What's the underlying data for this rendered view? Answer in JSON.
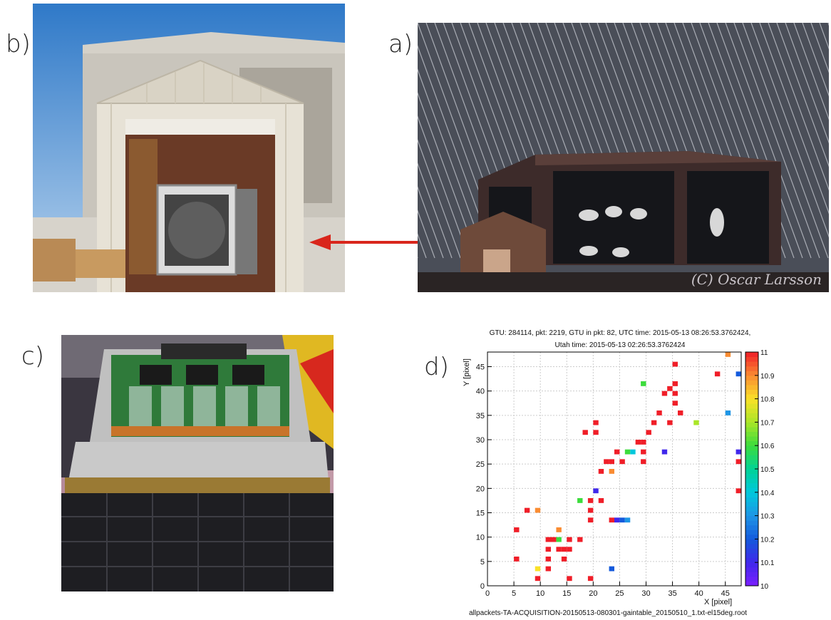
{
  "figure": {
    "label_a": "a)",
    "label_b": "b)",
    "label_c": "c)",
    "label_d": "d)",
    "credit": "(C) Oscar Larsson"
  },
  "heatmap": {
    "title_line1": "GTU: 284114, pkt: 2219, GTU in pkt: 82, UTC time: 2015-05-13 08:26:53.3762424,",
    "title_line2": "Utah time: 2015-05-13 02:26:53.3762424",
    "x_axis_title": "X [pixel]",
    "y_axis_title": "Y [pixel]",
    "x_ticks": [
      "0",
      "5",
      "10",
      "15",
      "20",
      "25",
      "30",
      "35",
      "40",
      "45"
    ],
    "y_ticks": [
      "0",
      "5",
      "10",
      "15",
      "20",
      "25",
      "30",
      "35",
      "40",
      "45"
    ],
    "colorbar_ticks": [
      "11",
      "10.9",
      "10.8",
      "10.7",
      "10.6",
      "10.5",
      "10.4",
      "10.3",
      "10.2",
      "10.1",
      "10"
    ],
    "file_name": "allpackets-TA-ACQUISITION-20150513-080301-gaintable_20150510_1.txt-el15deg.root"
  },
  "chart_data": {
    "type": "heatmap",
    "xlabel": "X [pixel]",
    "ylabel": "Y [pixel]",
    "xlim": [
      0,
      48
    ],
    "ylim": [
      0,
      48
    ],
    "zlim": [
      10,
      11
    ],
    "grid": true,
    "colorbar": "right",
    "cells": [
      [
        45,
        47,
        10.9
      ],
      [
        35,
        45,
        11
      ],
      [
        43,
        43,
        11
      ],
      [
        47,
        43,
        10.2
      ],
      [
        29,
        41,
        10.6
      ],
      [
        33,
        39,
        11
      ],
      [
        34,
        40,
        11
      ],
      [
        35,
        41,
        11
      ],
      [
        35,
        39,
        11
      ],
      [
        35,
        37,
        11
      ],
      [
        36,
        35,
        11
      ],
      [
        32,
        35,
        11
      ],
      [
        45,
        35,
        10.3
      ],
      [
        20,
        33,
        11
      ],
      [
        31,
        33,
        11
      ],
      [
        34,
        33,
        11
      ],
      [
        39,
        33,
        10.7
      ],
      [
        18,
        31,
        11
      ],
      [
        20,
        31,
        11
      ],
      [
        30,
        31,
        11
      ],
      [
        28,
        29,
        11
      ],
      [
        29,
        29,
        11
      ],
      [
        24,
        27,
        11
      ],
      [
        26,
        27,
        10.6
      ],
      [
        27,
        27,
        10.4
      ],
      [
        29,
        27,
        11
      ],
      [
        33,
        27,
        10.1
      ],
      [
        47,
        27,
        10.1
      ],
      [
        22,
        25,
        11
      ],
      [
        23,
        25,
        11
      ],
      [
        25,
        25,
        11
      ],
      [
        29,
        25,
        11
      ],
      [
        47,
        25,
        11
      ],
      [
        21,
        23,
        11
      ],
      [
        23,
        23,
        10.9
      ],
      [
        20,
        19,
        10.1
      ],
      [
        47,
        19,
        11
      ],
      [
        17,
        17,
        10.6
      ],
      [
        19,
        17,
        11
      ],
      [
        21,
        17,
        11
      ],
      [
        19,
        15,
        11
      ],
      [
        7,
        15,
        11
      ],
      [
        9,
        15,
        10.9
      ],
      [
        19,
        13,
        11
      ],
      [
        23,
        13,
        11
      ],
      [
        24,
        13,
        10.1
      ],
      [
        25,
        13,
        10.2
      ],
      [
        26,
        13,
        10.3
      ],
      [
        5,
        11,
        11
      ],
      [
        13,
        11,
        10.9
      ],
      [
        11,
        9,
        11
      ],
      [
        13,
        9,
        10.6
      ],
      [
        12,
        9,
        11
      ],
      [
        15,
        9,
        11
      ],
      [
        17,
        9,
        11
      ],
      [
        13,
        7,
        11
      ],
      [
        14,
        7,
        11
      ],
      [
        15,
        7,
        11
      ],
      [
        11,
        7,
        11
      ],
      [
        11,
        5,
        11
      ],
      [
        5,
        5,
        11
      ],
      [
        14,
        5,
        11
      ],
      [
        9,
        3,
        10.8
      ],
      [
        11,
        3,
        11
      ],
      [
        23,
        3,
        10.2
      ],
      [
        9,
        1,
        11
      ],
      [
        15,
        1,
        11
      ],
      [
        19,
        1,
        11
      ]
    ]
  }
}
